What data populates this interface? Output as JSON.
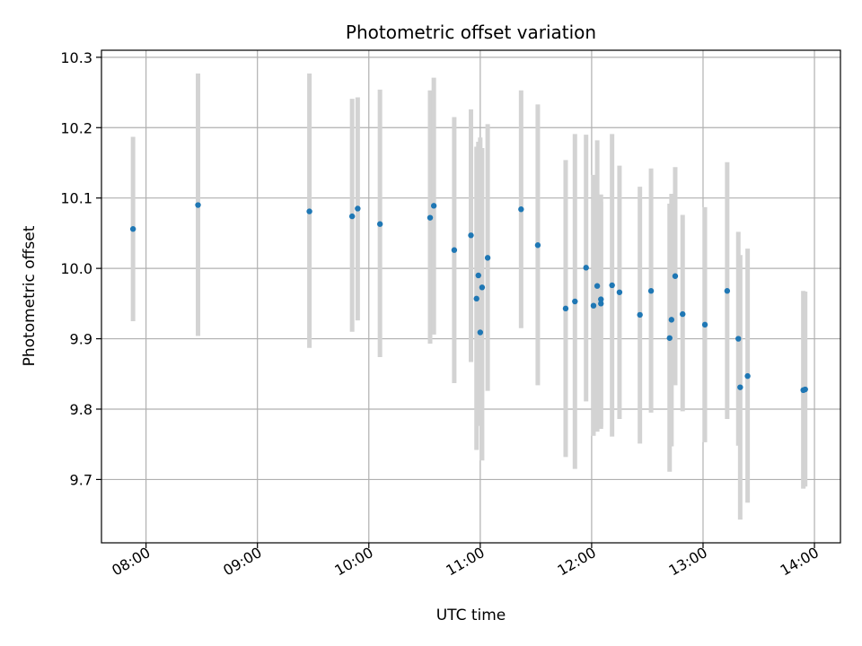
{
  "chart_data": {
    "type": "scatter",
    "title": "Photometric offset variation",
    "xlabel": "UTC time",
    "ylabel": "Photometric offset",
    "x_ticks": [
      "08:00",
      "09:00",
      "10:00",
      "11:00",
      "12:00",
      "13:00",
      "14:00"
    ],
    "y_ticks": [
      "9.7",
      "9.8",
      "9.9",
      "10.0",
      "10.1",
      "10.2",
      "10.3"
    ],
    "xlim": [
      "07:36",
      "14:14"
    ],
    "ylim": [
      9.61,
      10.31
    ],
    "grid": true,
    "marker_color": "#1f77b4",
    "errorbar_color": "#d3d3d3",
    "points": [
      {
        "x": "07:53",
        "y": 10.056,
        "lo": 9.925,
        "hi": 10.187
      },
      {
        "x": "08:28",
        "y": 10.09,
        "lo": 9.904,
        "hi": 10.277
      },
      {
        "x": "09:28",
        "y": 10.081,
        "lo": 9.887,
        "hi": 10.277
      },
      {
        "x": "09:51",
        "y": 10.074,
        "lo": 9.91,
        "hi": 10.241
      },
      {
        "x": "09:54",
        "y": 10.085,
        "lo": 9.926,
        "hi": 10.243
      },
      {
        "x": "10:06",
        "y": 10.063,
        "lo": 9.874,
        "hi": 10.254
      },
      {
        "x": "10:33",
        "y": 10.072,
        "lo": 9.893,
        "hi": 10.253
      },
      {
        "x": "10:35",
        "y": 10.089,
        "lo": 9.906,
        "hi": 10.271
      },
      {
        "x": "10:46",
        "y": 10.026,
        "lo": 9.837,
        "hi": 10.215
      },
      {
        "x": "10:55",
        "y": 10.047,
        "lo": 9.867,
        "hi": 10.226
      },
      {
        "x": "10:58",
        "y": 9.957,
        "lo": 9.742,
        "hi": 10.173
      },
      {
        "x": "10:59",
        "y": 9.99,
        "lo": 9.8,
        "hi": 10.18
      },
      {
        "x": "11:00",
        "y": 9.909,
        "lo": 9.776,
        "hi": 10.186
      },
      {
        "x": "11:01",
        "y": 9.973,
        "lo": 9.727,
        "hi": 10.171
      },
      {
        "x": "11:04",
        "y": 10.015,
        "lo": 9.826,
        "hi": 10.205
      },
      {
        "x": "11:22",
        "y": 10.084,
        "lo": 9.915,
        "hi": 10.253
      },
      {
        "x": "11:31",
        "y": 10.033,
        "lo": 9.834,
        "hi": 10.233
      },
      {
        "x": "11:46",
        "y": 9.943,
        "lo": 9.732,
        "hi": 10.154
      },
      {
        "x": "11:51",
        "y": 9.953,
        "lo": 9.715,
        "hi": 10.191
      },
      {
        "x": "11:57",
        "y": 10.001,
        "lo": 9.811,
        "hi": 10.19
      },
      {
        "x": "12:01",
        "y": 9.947,
        "lo": 9.762,
        "hi": 10.133
      },
      {
        "x": "12:03",
        "y": 9.975,
        "lo": 9.768,
        "hi": 10.182
      },
      {
        "x": "12:05",
        "y": 9.95,
        "lo": 9.772,
        "hi": 10.105
      },
      {
        "x": "12:05",
        "y": 9.956,
        "lo": 9.775,
        "hi": 10.095
      },
      {
        "x": "12:11",
        "y": 9.976,
        "lo": 9.761,
        "hi": 10.191
      },
      {
        "x": "12:15",
        "y": 9.966,
        "lo": 9.786,
        "hi": 10.146
      },
      {
        "x": "12:26",
        "y": 9.934,
        "lo": 9.751,
        "hi": 10.116
      },
      {
        "x": "12:32",
        "y": 9.968,
        "lo": 9.795,
        "hi": 10.142
      },
      {
        "x": "12:42",
        "y": 9.901,
        "lo": 9.711,
        "hi": 10.092
      },
      {
        "x": "12:43",
        "y": 9.927,
        "lo": 9.747,
        "hi": 10.106
      },
      {
        "x": "12:45",
        "y": 9.989,
        "lo": 9.834,
        "hi": 10.144
      },
      {
        "x": "12:49",
        "y": 9.935,
        "lo": 9.797,
        "hi": 10.076
      },
      {
        "x": "13:01",
        "y": 9.92,
        "lo": 9.753,
        "hi": 10.087
      },
      {
        "x": "13:13",
        "y": 9.968,
        "lo": 9.786,
        "hi": 10.151
      },
      {
        "x": "13:19",
        "y": 9.9,
        "lo": 9.748,
        "hi": 10.052
      },
      {
        "x": "13:20",
        "y": 9.831,
        "lo": 9.643,
        "hi": 10.019
      },
      {
        "x": "13:24",
        "y": 9.847,
        "lo": 9.667,
        "hi": 10.028
      },
      {
        "x": "13:54",
        "y": 9.827,
        "lo": 9.687,
        "hi": 9.968
      },
      {
        "x": "13:55",
        "y": 9.828,
        "lo": 9.69,
        "hi": 9.967
      }
    ]
  }
}
